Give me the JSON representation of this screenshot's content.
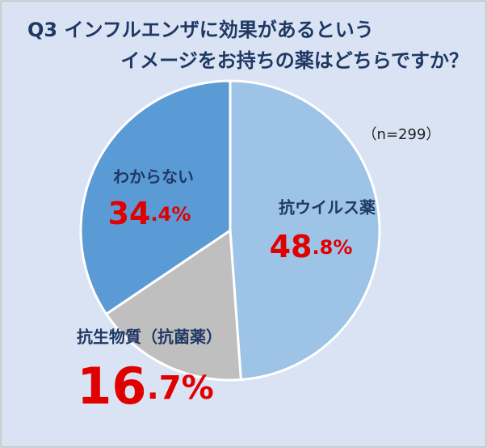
{
  "chart_data": {
    "type": "pie",
    "title": [
      "Q3  インフルエンザに効果があるという",
      "イメージをお持ちの薬はどちらですか？"
    ],
    "annotation": "（n=299）",
    "categories": [
      "抗ウイルス薬",
      "抗生物質（抗菌薬）",
      "わからない"
    ],
    "values": [
      48.8,
      16.7,
      34.4
    ],
    "value_labels": [
      "48.8%",
      "16.7%",
      "34.4%"
    ],
    "colors": [
      "#9dc3e6",
      "#bfbfbf",
      "#5b9bd5"
    ]
  }
}
